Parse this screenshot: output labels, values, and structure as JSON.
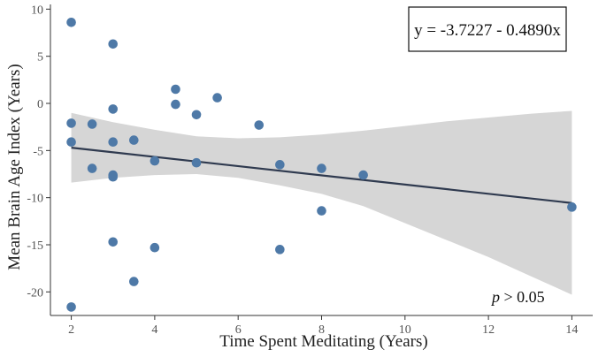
{
  "chart_data": {
    "type": "scatter",
    "xlabel": "Time Spent Meditating (Years)",
    "ylabel": "Mean Brain Age Index (Years)",
    "xlim": [
      1.5,
      14.5
    ],
    "ylim": [
      -22.5,
      10.5
    ],
    "x_ticks": [
      2,
      4,
      6,
      8,
      10,
      12,
      14
    ],
    "y_ticks": [
      10,
      5,
      0,
      -5,
      -10,
      -15,
      -20
    ],
    "grid": false,
    "points": [
      {
        "x": 2,
        "y": 8.6
      },
      {
        "x": 2,
        "y": -2.1
      },
      {
        "x": 2,
        "y": -4.1
      },
      {
        "x": 2,
        "y": -21.6
      },
      {
        "x": 2.5,
        "y": -2.2
      },
      {
        "x": 2.5,
        "y": -6.9
      },
      {
        "x": 3,
        "y": 6.3
      },
      {
        "x": 3,
        "y": -0.6
      },
      {
        "x": 3,
        "y": -4.1
      },
      {
        "x": 3,
        "y": -7.6
      },
      {
        "x": 3,
        "y": -7.8
      },
      {
        "x": 3,
        "y": -14.7
      },
      {
        "x": 3.5,
        "y": -3.9
      },
      {
        "x": 3.5,
        "y": -18.9
      },
      {
        "x": 4,
        "y": -6.1
      },
      {
        "x": 4,
        "y": -15.3
      },
      {
        "x": 4.5,
        "y": 1.5
      },
      {
        "x": 4.5,
        "y": -0.1
      },
      {
        "x": 5,
        "y": -1.2
      },
      {
        "x": 5,
        "y": -6.3
      },
      {
        "x": 5.5,
        "y": 0.6
      },
      {
        "x": 6.5,
        "y": -2.3
      },
      {
        "x": 7,
        "y": -6.5
      },
      {
        "x": 7,
        "y": -15.5
      },
      {
        "x": 8,
        "y": -6.9
      },
      {
        "x": 8,
        "y": -11.4
      },
      {
        "x": 9,
        "y": -7.6
      },
      {
        "x": 14,
        "y": -11.0
      }
    ],
    "regression": {
      "intercept": -3.7227,
      "slope": -0.489,
      "x_range": [
        2,
        14
      ]
    },
    "confidence_band": {
      "x": [
        2,
        3,
        4,
        5,
        6,
        7,
        8,
        9,
        10,
        11,
        12,
        13,
        14
      ],
      "upper": [
        -1.0,
        -2.0,
        -2.8,
        -3.5,
        -3.7,
        -3.6,
        -3.3,
        -2.9,
        -2.4,
        -1.9,
        -1.5,
        -1.1,
        -0.8
      ],
      "lower": [
        -8.4,
        -7.9,
        -7.6,
        -7.5,
        -7.9,
        -8.7,
        -9.6,
        -10.9,
        -12.7,
        -14.5,
        -16.3,
        -18.3,
        -20.3
      ]
    },
    "equation_label": "y = -3.7227 - 0.4890x",
    "p_label_italic": "p",
    "p_label_rest": " > 0.05",
    "colors": {
      "points": "#4e79a7",
      "line": "#2f3a4f",
      "band": "#d6d6d6",
      "axis": "#333333"
    }
  }
}
